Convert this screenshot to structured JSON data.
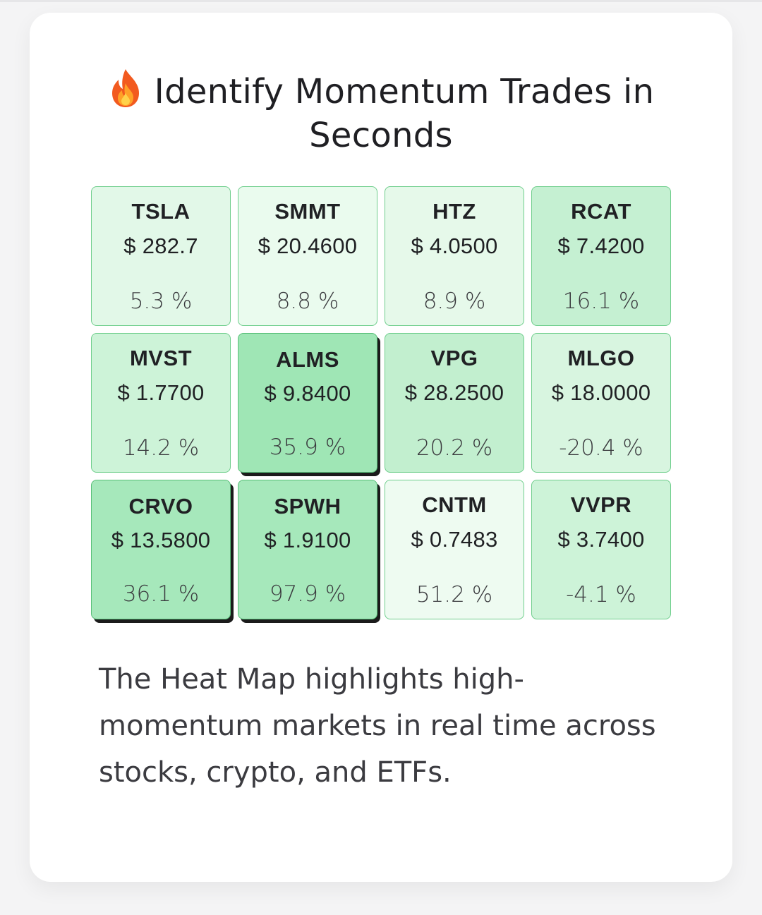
{
  "header": {
    "title": "Identify Momentum Trades in Seconds",
    "icon": "fire-icon"
  },
  "heatmap": {
    "tiles": [
      {
        "symbol": "TSLA",
        "price": "$ 282.7",
        "change": "5.3 %",
        "color": "#e2f8e8",
        "raised": false
      },
      {
        "symbol": "SMMT",
        "price": "$ 20.4600",
        "change": "8.8 %",
        "color": "#eafbee",
        "raised": false
      },
      {
        "symbol": "HTZ",
        "price": "$ 4.0500",
        "change": "8.9 %",
        "color": "#e6f9ea",
        "raised": false
      },
      {
        "symbol": "RCAT",
        "price": "$ 7.4200",
        "change": "16.1 %",
        "color": "#c5f0d2",
        "raised": false
      },
      {
        "symbol": "MVST",
        "price": "$ 1.7700",
        "change": "14.2 %",
        "color": "#cdf3d8",
        "raised": false
      },
      {
        "symbol": "ALMS",
        "price": "$ 9.8400",
        "change": "35.9 %",
        "color": "#9fe6b5",
        "raised": true
      },
      {
        "symbol": "VPG",
        "price": "$ 28.2500",
        "change": "20.2 %",
        "color": "#c2efcf",
        "raised": false
      },
      {
        "symbol": "MLGO",
        "price": "$ 18.0000",
        "change": "-20.4 %",
        "color": "#d8f5e0",
        "raised": false
      },
      {
        "symbol": "CRVO",
        "price": "$ 13.5800",
        "change": "36.1 %",
        "color": "#a6e8bb",
        "raised": true
      },
      {
        "symbol": "SPWH",
        "price": "$ 1.9100",
        "change": "97.9 %",
        "color": "#a6e8bb",
        "raised": true
      },
      {
        "symbol": "CNTM",
        "price": "$ 0.7483",
        "change": "51.2 %",
        "color": "#eefbf1",
        "raised": false
      },
      {
        "symbol": "VVPR",
        "price": "$ 3.7400",
        "change": "-4.1 %",
        "color": "#cdf3d8",
        "raised": false
      }
    ]
  },
  "description": {
    "text": "The Heat Map highlights high-momentum markets in real time across stocks, crypto, and ETFs."
  }
}
